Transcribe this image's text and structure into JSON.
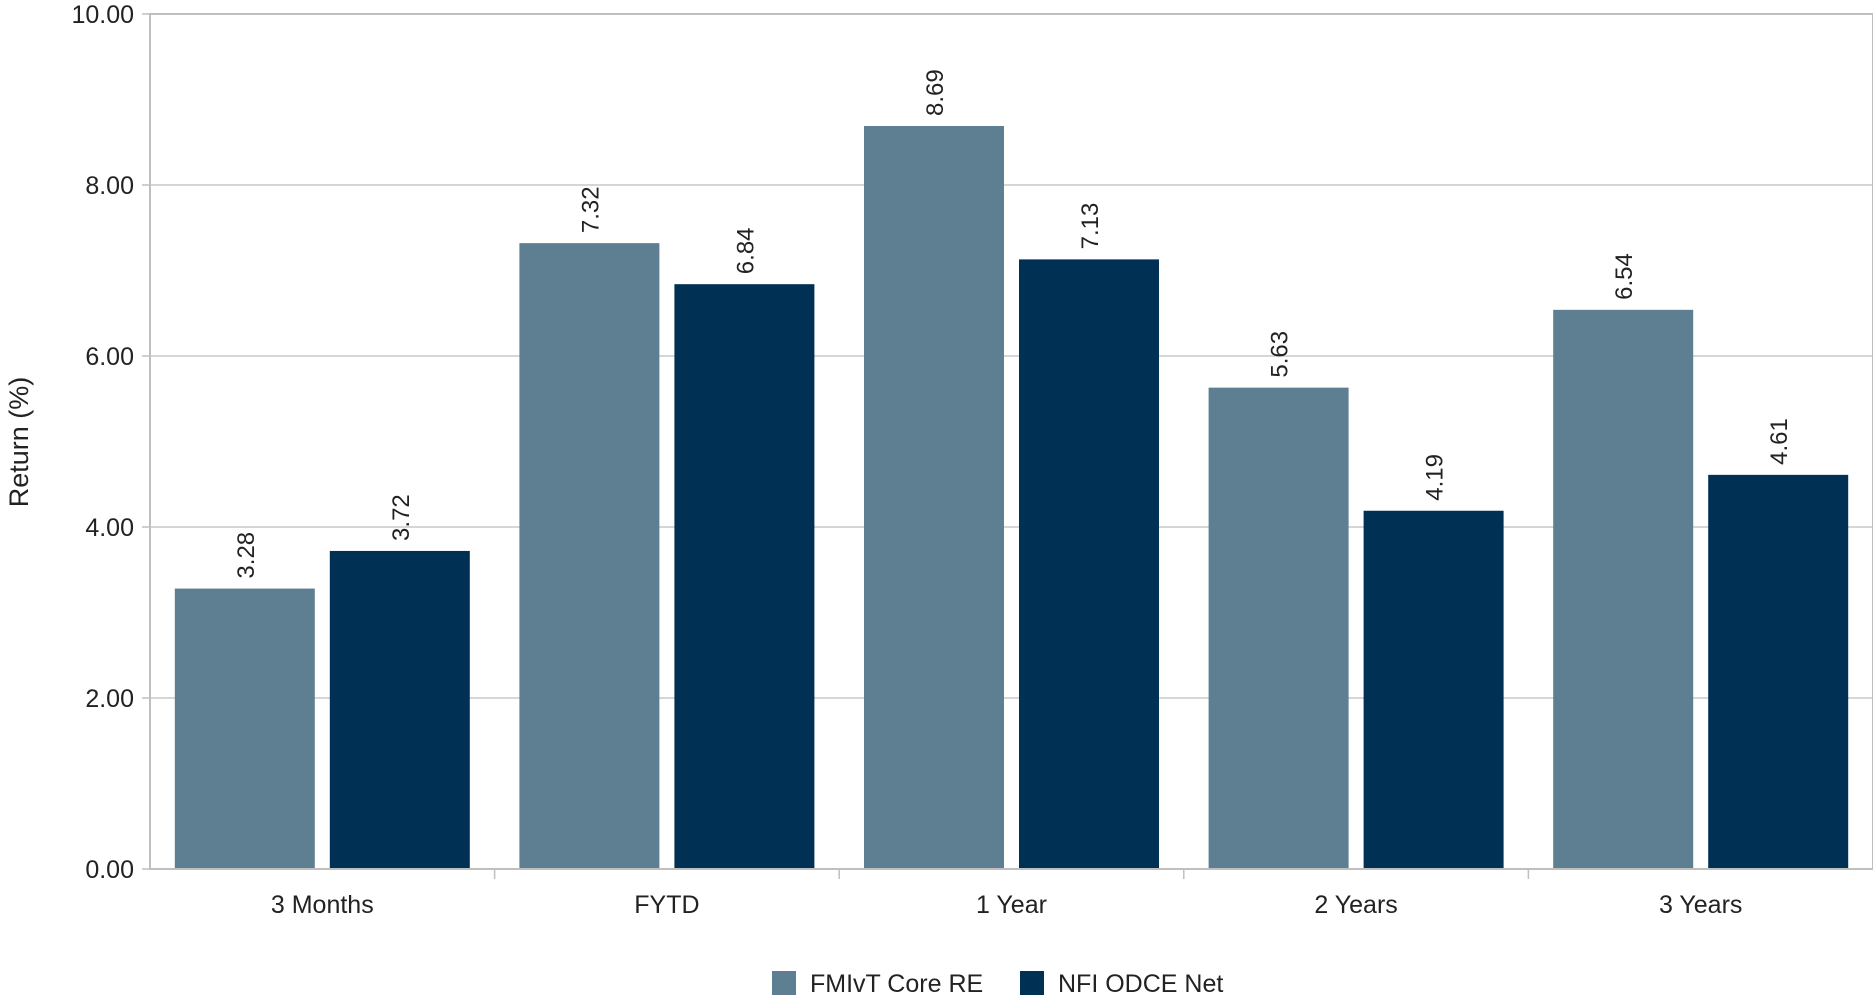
{
  "chart_data": {
    "type": "bar",
    "categories": [
      "3 Months",
      "FYTD",
      "1 Year",
      "2 Years",
      "3 Years"
    ],
    "series": [
      {
        "name": "FMIvT Core RE",
        "color": "#5e7f92",
        "values": [
          3.28,
          7.32,
          8.69,
          5.63,
          6.54
        ],
        "labels": [
          "3.28",
          "7.32",
          "8.69",
          "5.63",
          "6.54"
        ]
      },
      {
        "name": "NFI ODCE Net",
        "color": "#003154",
        "values": [
          3.72,
          6.84,
          7.13,
          4.19,
          4.61
        ],
        "labels": [
          "3.72",
          "6.84",
          "7.13",
          "4.19",
          "4.61"
        ]
      }
    ],
    "ylabel": "Return (%)",
    "ylim": [
      0,
      10
    ],
    "yticks": [
      0,
      2,
      4,
      6,
      8,
      10
    ],
    "ytick_labels": [
      "0.00",
      "2.00",
      "4.00",
      "6.00",
      "8.00",
      "10.00"
    ],
    "grid": true,
    "legend_position": "bottom-center"
  }
}
